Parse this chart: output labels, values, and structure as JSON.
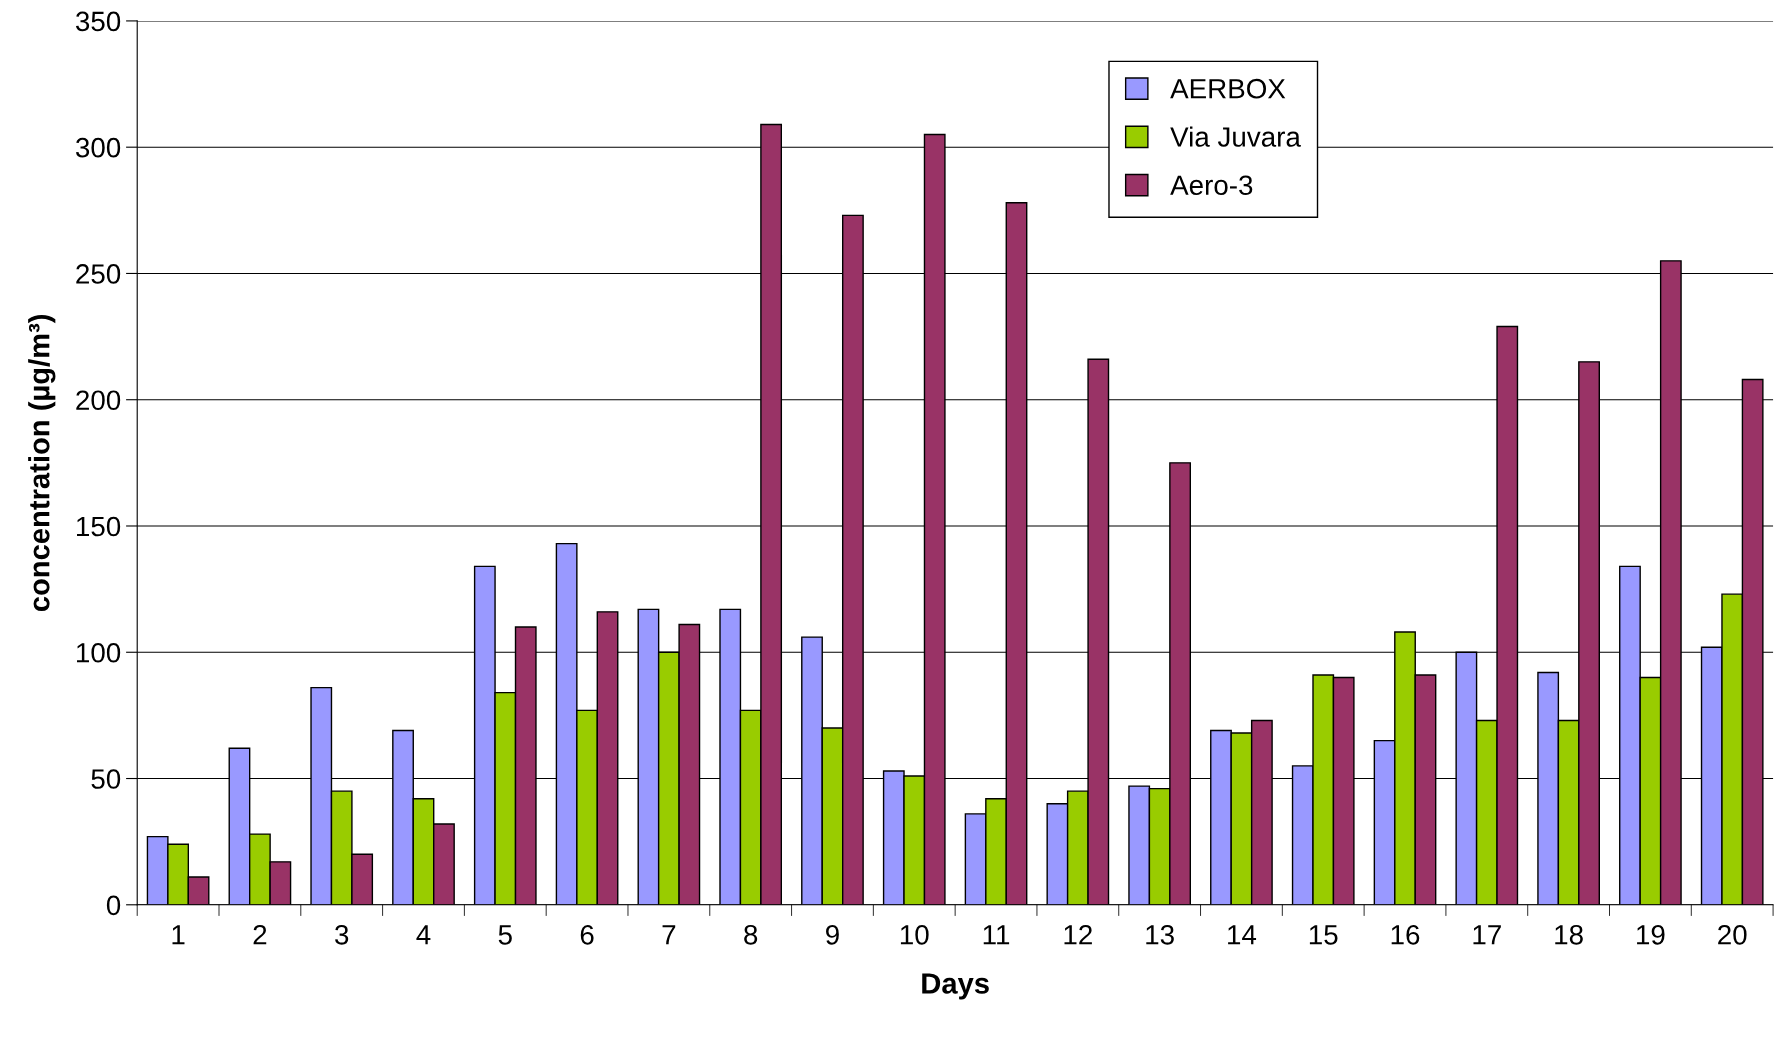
{
  "chart_data": {
    "type": "bar",
    "xlabel": "Days",
    "ylabel": "concentration (µg/m³)",
    "categories": [
      "1",
      "2",
      "3",
      "4",
      "5",
      "6",
      "7",
      "8",
      "9",
      "10",
      "11",
      "12",
      "13",
      "14",
      "15",
      "16",
      "17",
      "18",
      "19",
      "20"
    ],
    "series": [
      {
        "name": "AERBOX",
        "color": "#9999ff",
        "values": [
          27,
          62,
          86,
          69,
          134,
          143,
          117,
          117,
          106,
          53,
          36,
          40,
          47,
          69,
          55,
          65,
          100,
          92,
          134,
          102
        ]
      },
      {
        "name": "Via Juvara",
        "color": "#99cc00",
        "values": [
          24,
          28,
          45,
          42,
          84,
          77,
          100,
          77,
          70,
          51,
          42,
          45,
          46,
          68,
          91,
          108,
          73,
          73,
          90,
          123
        ]
      },
      {
        "name": "Aero-3",
        "color": "#993366",
        "values": [
          11,
          17,
          20,
          32,
          110,
          116,
          111,
          309,
          273,
          305,
          278,
          216,
          175,
          73,
          90,
          91,
          229,
          215,
          255,
          208
        ]
      }
    ],
    "ylim": [
      0,
      350
    ],
    "yticks": [
      0,
      50,
      100,
      150,
      200,
      250,
      300,
      350
    ],
    "grid": "y",
    "legend": "top right"
  }
}
